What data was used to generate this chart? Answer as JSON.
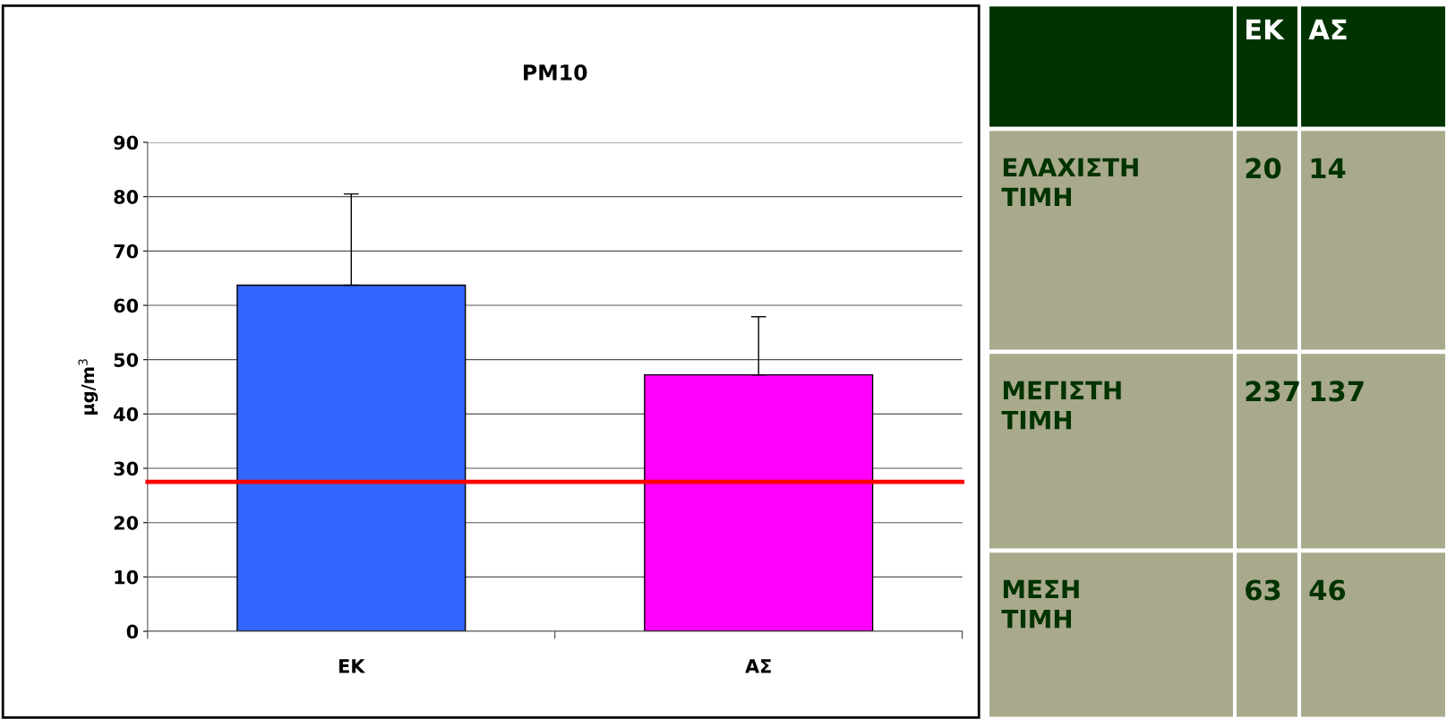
{
  "chart_data": [
    {
      "type": "bar",
      "title": "PM10",
      "ylabel": "μg/m$^{3}$",
      "categories": [
        "ΕΚ",
        "ΑΣ"
      ],
      "values": [
        63.7,
        47.2
      ],
      "colors": [
        "#3366ff",
        "#ff00ff"
      ],
      "errors": [
        [
          63.7,
          80.5
        ],
        [
          47.2,
          57.9
        ]
      ],
      "ylim": [
        0,
        90
      ],
      "yticks": [
        0,
        10,
        20,
        30,
        40,
        50,
        60,
        70,
        80,
        90
      ],
      "grid": "y",
      "ref_lines": [
        {
          "axis": "y",
          "value": 27.5,
          "color": "#ff0000"
        }
      ]
    },
    {
      "type": "other",
      "categories": [
        "ΕΚ",
        "ΑΣ"
      ],
      "y_categories": [
        "ΕΛΑΧΙΣΤΗ ΤΙΜΗ",
        "ΜΕΓΙΣΤΗ ΤΙΜΗ",
        "ΜΕΣΗ ΤΙΜΗ"
      ],
      "annotations": [
        "20",
        "14",
        "237",
        "137",
        "63",
        "46"
      ]
    }
  ]
}
